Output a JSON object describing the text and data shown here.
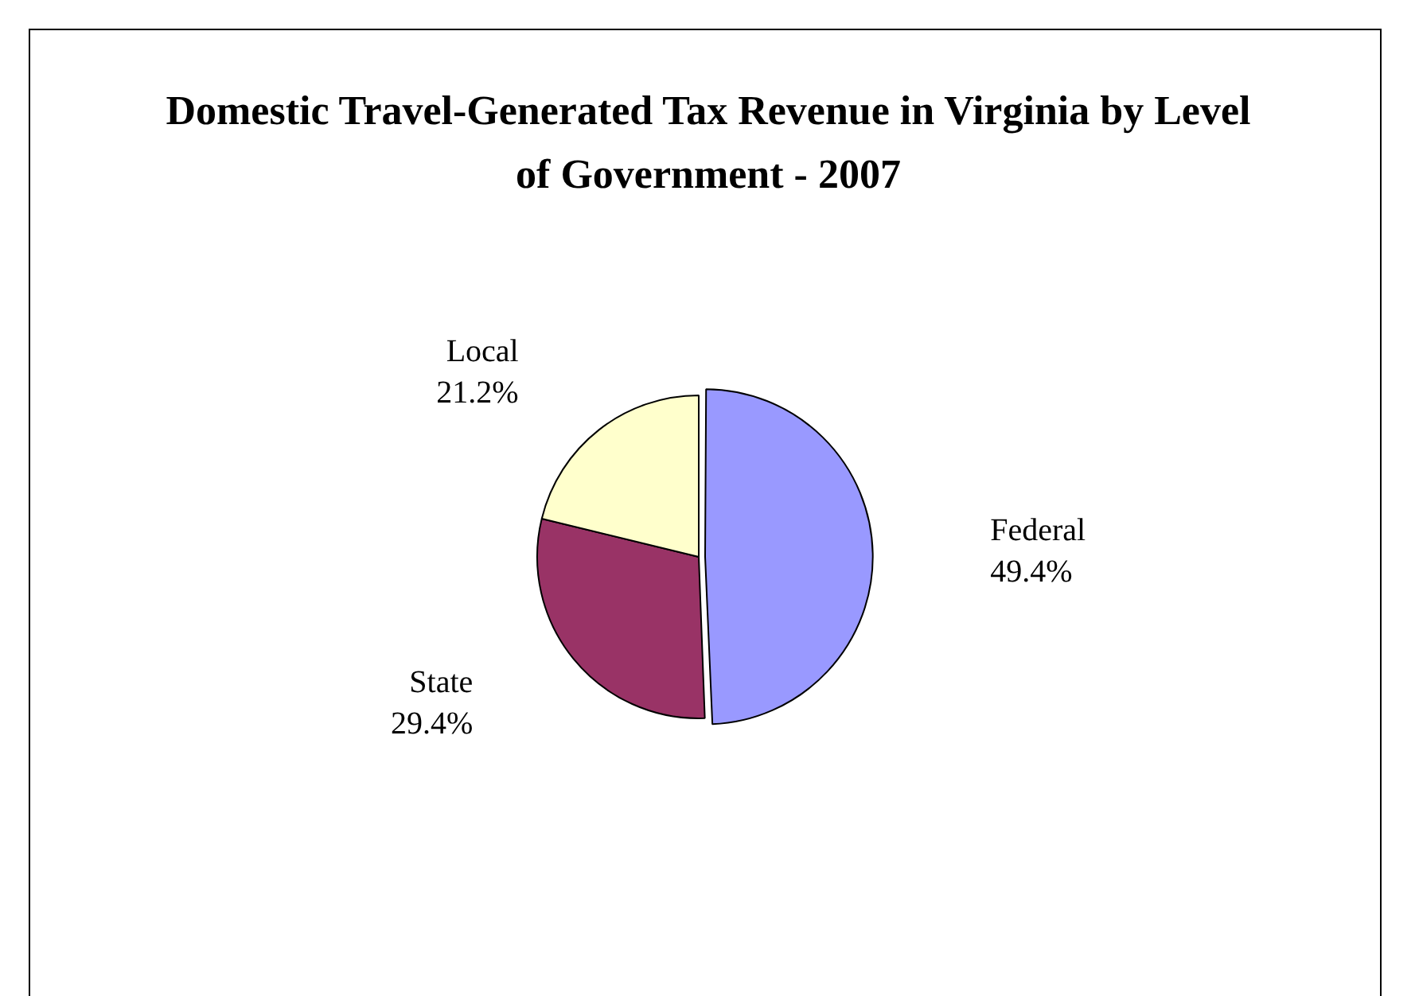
{
  "chart_data": {
    "type": "pie",
    "title": "Domestic Travel-Generated Tax Revenue in Virginia by Level of Government - 2007",
    "categories": [
      "Federal",
      "State",
      "Local"
    ],
    "values": [
      49.4,
      29.4,
      21.2
    ],
    "colors": [
      "#9999ff",
      "#993366",
      "#ffffcc"
    ],
    "value_labels": [
      "49.4%",
      "29.4%",
      "21.2%"
    ],
    "legend": false
  }
}
